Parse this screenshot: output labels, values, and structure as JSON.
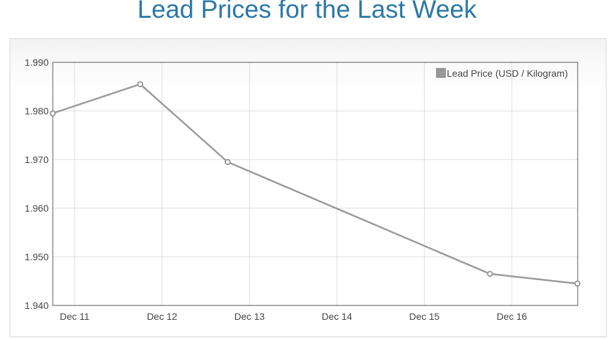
{
  "page": {
    "title": "Lead Prices for the Last Week"
  },
  "colors": {
    "title": "#2b78a8",
    "series": "#999999",
    "grid": "#dddddd",
    "axis": "#555555"
  },
  "chart_data": {
    "type": "line",
    "title": "Lead Prices for the Last Week",
    "xlabel": "",
    "ylabel": "",
    "x_ticks": [
      "Dec 11",
      "Dec 12",
      "Dec 13",
      "Dec 14",
      "Dec 15",
      "Dec 16"
    ],
    "ylim": [
      1.94,
      1.99
    ],
    "y_ticks": [
      "1.940",
      "1.950",
      "1.960",
      "1.970",
      "1.980",
      "1.990"
    ],
    "grid": true,
    "legend_position": "top-right",
    "series": [
      {
        "name": "Lead Price (USD / Kilogram)",
        "points": [
          {
            "x": "Dec 10 18:00",
            "y": 1.9795
          },
          {
            "x": "Dec 11 18:00",
            "y": 1.9855
          },
          {
            "x": "Dec 12 18:00",
            "y": 1.9695
          },
          {
            "x": "Dec 15 18:00",
            "y": 1.9465
          },
          {
            "x": "Dec 16 18:00",
            "y": 1.9445
          }
        ]
      }
    ]
  }
}
